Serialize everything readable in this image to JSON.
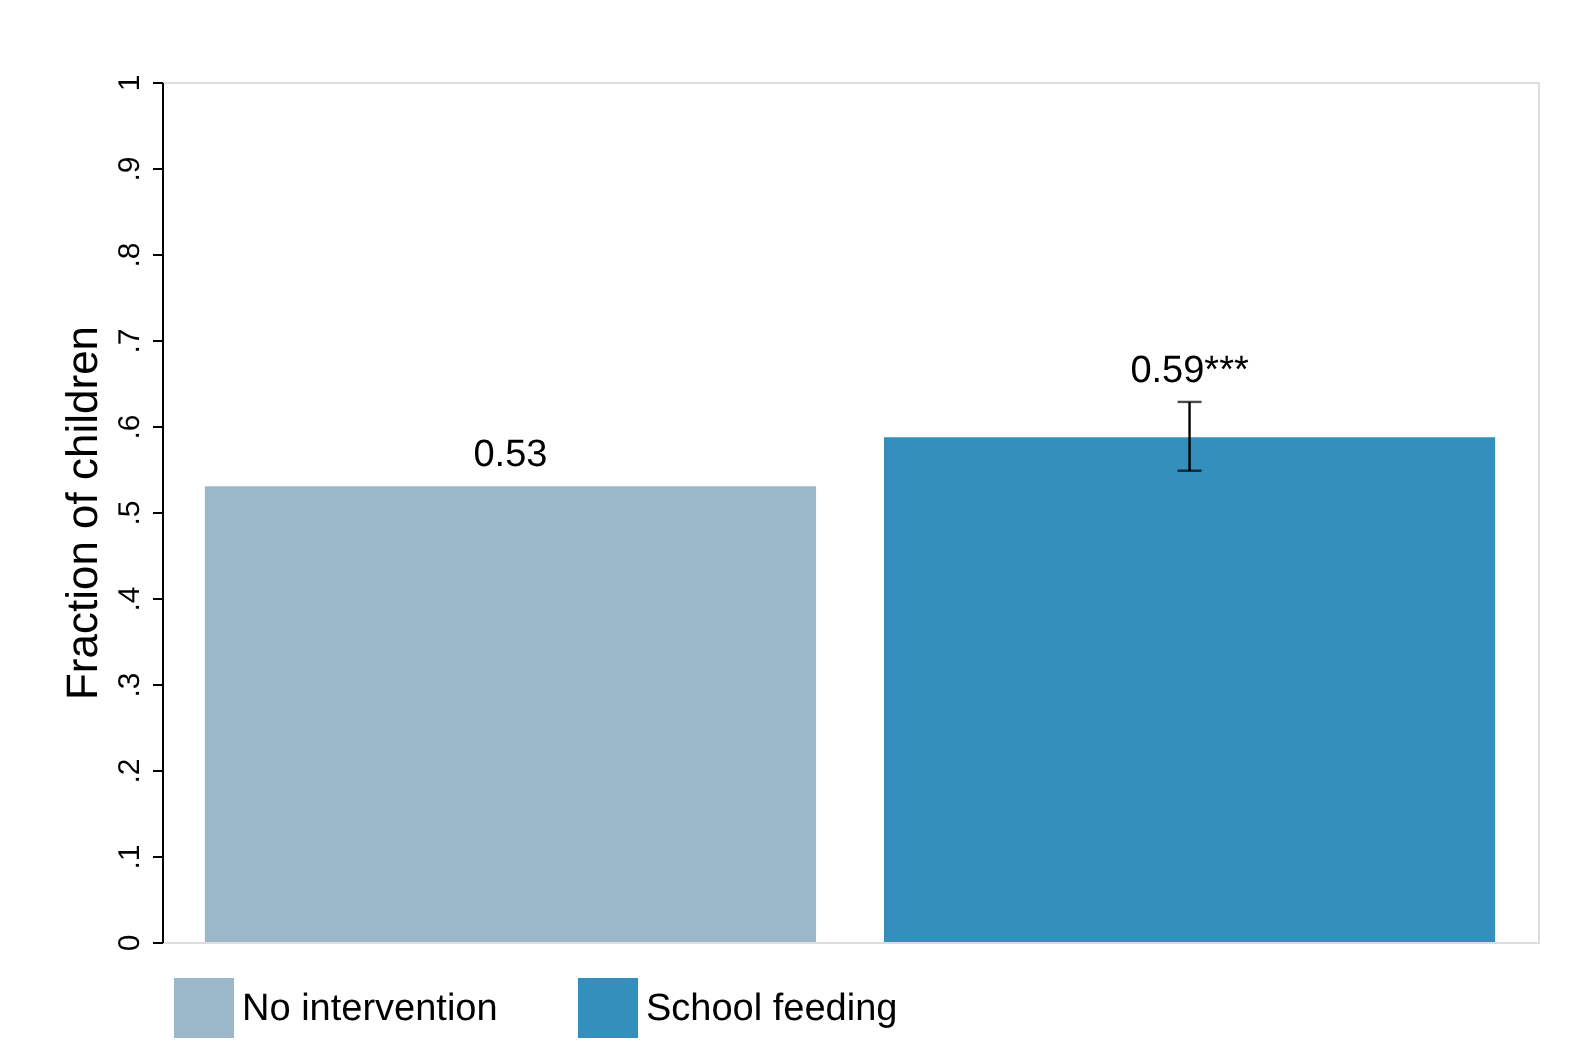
{
  "chart_data": {
    "type": "bar",
    "ylabel": "Fraction of children",
    "categories": [
      null
    ],
    "series": [
      {
        "name": "No intervention",
        "color": "#9bb8ca",
        "values": [
          0.53
        ],
        "value_labels": [
          "0.53"
        ]
      },
      {
        "name": "School feeding",
        "color": "#348fbd",
        "values": [
          0.587
        ],
        "errors": [
          [
            0.548,
            0.628
          ]
        ],
        "value_labels": [
          "0.59***"
        ]
      }
    ],
    "ylim": [
      0,
      1
    ],
    "yticks": [
      {
        "value": 0,
        "label": "0"
      },
      {
        "value": 0.1,
        "label": ".1"
      },
      {
        "value": 0.2,
        "label": ".2"
      },
      {
        "value": 0.3,
        "label": ".3"
      },
      {
        "value": 0.4,
        "label": ".4"
      },
      {
        "value": 0.5,
        "label": ".5"
      },
      {
        "value": 0.6,
        "label": ".6"
      },
      {
        "value": 0.7,
        "label": ".7"
      },
      {
        "value": 0.8,
        "label": ".8"
      },
      {
        "value": 0.9,
        "label": ".9"
      },
      {
        "value": 1,
        "label": "1"
      }
    ],
    "tick_labels": "y",
    "legend": "bottom",
    "grid": false
  }
}
